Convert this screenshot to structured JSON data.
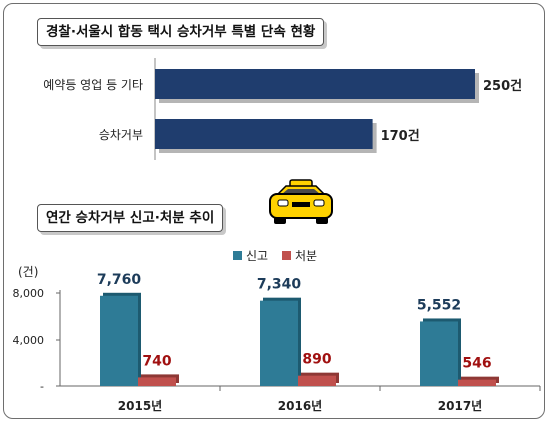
{
  "chart_data": [
    {
      "type": "bar",
      "orientation": "horizontal",
      "title": "경찰·서울시 합동 택시 승차거부 특별 단속 현황",
      "categories": [
        "예약등 영업 등 기타",
        "승차거부"
      ],
      "values": [
        250,
        170
      ],
      "value_labels": [
        "250건",
        "170건"
      ],
      "color": "#1f3d6e"
    },
    {
      "type": "bar",
      "title": "연간 승차거부 신고·처분 추이",
      "ylabel": "(건)",
      "categories": [
        "2015년",
        "2016년",
        "2017년"
      ],
      "series": [
        {
          "name": "신고",
          "values": [
            7760,
            7340,
            5552
          ],
          "labels": [
            "7,760",
            "7,340",
            "5,552"
          ],
          "color": "#2e7b96"
        },
        {
          "name": "처분",
          "values": [
            740,
            890,
            546
          ],
          "labels": [
            "740",
            "890",
            "546"
          ],
          "color": "#c0504d"
        }
      ],
      "yticks": [
        "8,000",
        "4,000",
        "-"
      ],
      "ylim": [
        0,
        8000
      ],
      "legend": "top-center"
    }
  ],
  "icons": {
    "taxi": "taxi-icon"
  }
}
